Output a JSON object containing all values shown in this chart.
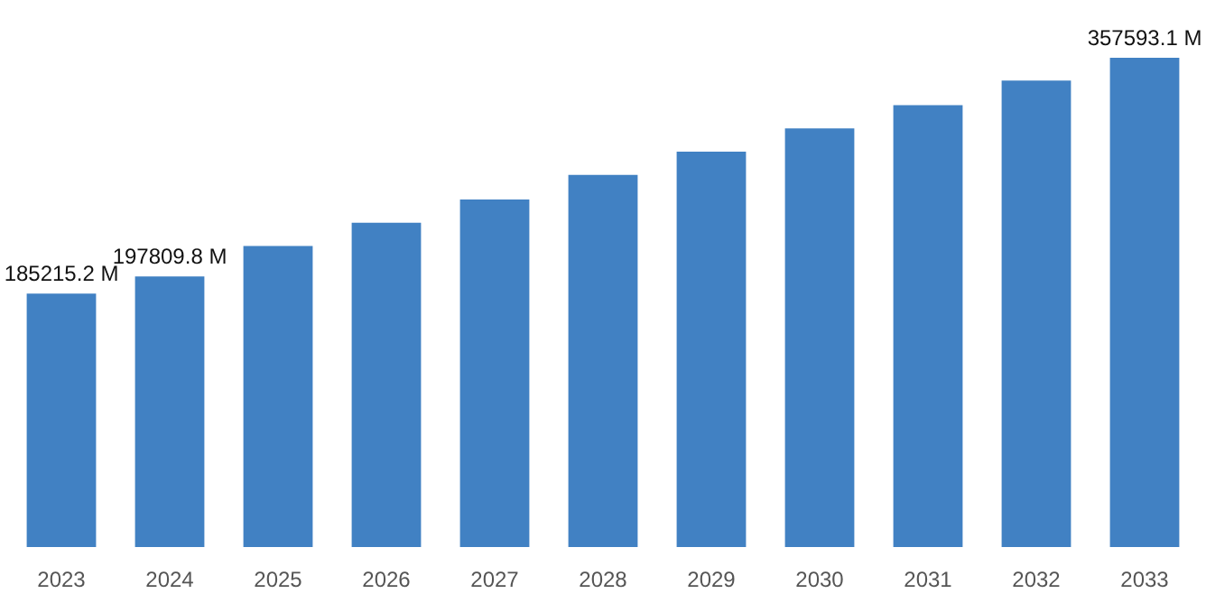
{
  "chart_data": {
    "type": "bar",
    "categories": [
      "2023",
      "2024",
      "2025",
      "2026",
      "2027",
      "2028",
      "2029",
      "2030",
      "2031",
      "2032",
      "2033"
    ],
    "values": [
      185215.2,
      197809.8,
      220000,
      237000,
      254000,
      272000,
      289000,
      306000,
      323000,
      341000,
      357593.1
    ],
    "value_labels": [
      "185215.2 M",
      "197809.8 M",
      null,
      null,
      null,
      null,
      null,
      null,
      null,
      null,
      "357593.1 M"
    ],
    "color": "#4181c3"
  }
}
